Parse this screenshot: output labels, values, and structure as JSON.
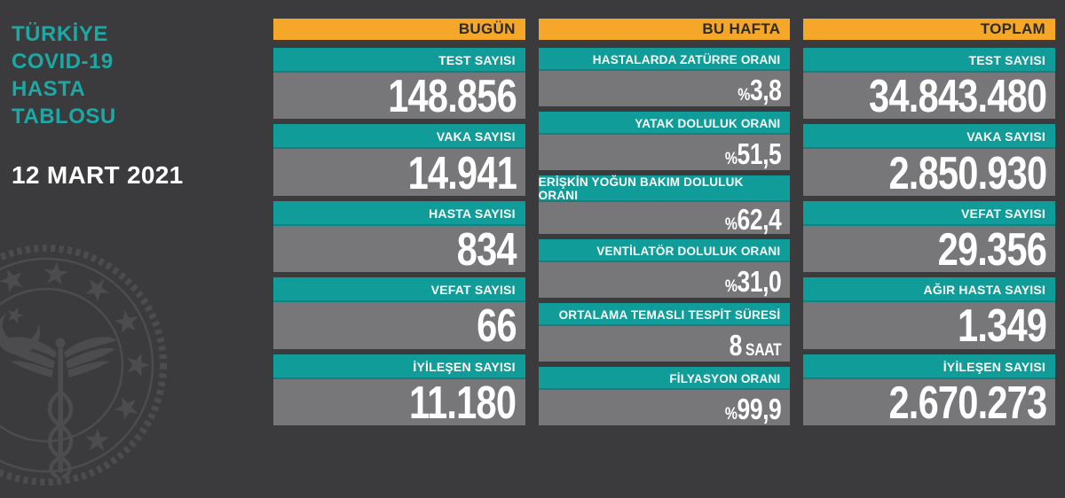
{
  "page_title": "TÜRKİYE COVID-19 HASTA TABLOSU",
  "colors": {
    "background": "#3b3b3d",
    "bar_gray": "#77777a",
    "teal": "#109c99",
    "title_teal": "#1ca8a4",
    "orange": "#f4a728",
    "header_text": "#2e2a25",
    "value_text": "#ffffff",
    "watermark": "#4c4c4f"
  },
  "sidebar": {
    "title_lines": [
      "TÜRKİYE",
      "COVID-19",
      "HASTA",
      "TABLOSU"
    ],
    "date": "12 MART 2021",
    "emblem": "turkish-ministry-of-health-emblem"
  },
  "chart_data": {
    "type": "table",
    "title": "TÜRKİYE COVID-19 HASTA TABLOSU",
    "date": "12 MART 2021",
    "sections": [
      {
        "header": "BUGÜN",
        "rows": [
          {
            "label": "TEST SAYISI",
            "value": "148.856"
          },
          {
            "label": "VAKA SAYISI",
            "value": "14.941"
          },
          {
            "label": "HASTA SAYISI",
            "value": "834"
          },
          {
            "label": "VEFAT SAYISI",
            "value": "66"
          },
          {
            "label": "İYİLEŞEN SAYISI",
            "value": "11.180"
          }
        ]
      },
      {
        "header": "BU HAFTA",
        "rows": [
          {
            "label": "HASTALARDA ZATÜRRE ORANI",
            "value": "%3,8"
          },
          {
            "label": "YATAK DOLULUK ORANI",
            "value": "%51,5"
          },
          {
            "label": "ERİŞKİN YOĞUN BAKIM DOLULUK ORANI",
            "value": "%62,4"
          },
          {
            "label": "VENTİLATÖR DOLULUK ORANI",
            "value": "%31,0"
          },
          {
            "label": "ORTALAMA TEMASLI TESPİT SÜRESİ",
            "value": "8 SAAT"
          },
          {
            "label": "FİLYASYON ORANI",
            "value": "%99,9"
          }
        ]
      },
      {
        "header": "TOPLAM",
        "rows": [
          {
            "label": "TEST SAYISI",
            "value": "34.843.480"
          },
          {
            "label": "VAKA SAYISI",
            "value": "2.850.930"
          },
          {
            "label": "VEFAT SAYISI",
            "value": "29.356"
          },
          {
            "label": "AĞIR HASTA SAYISI",
            "value": "1.349"
          },
          {
            "label": "İYİLEŞEN SAYISI",
            "value": "2.670.273"
          }
        ]
      }
    ]
  }
}
